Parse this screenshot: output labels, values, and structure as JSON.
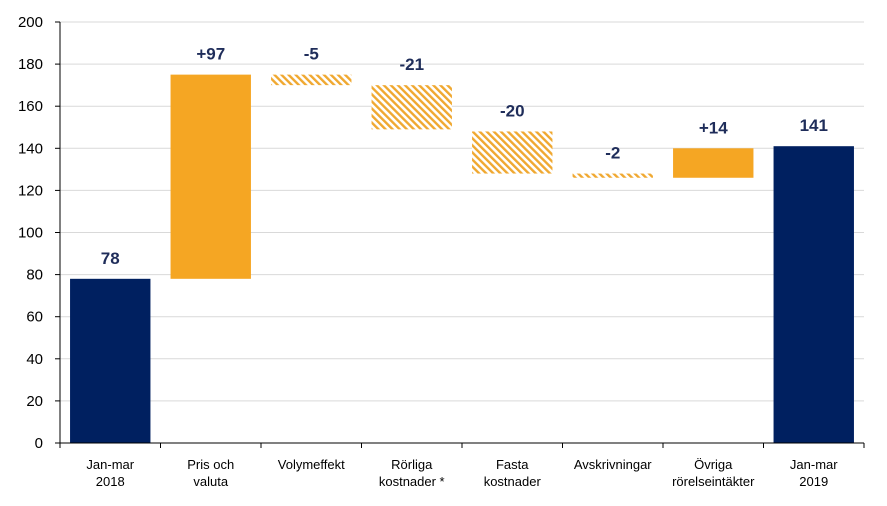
{
  "chart_data": {
    "type": "bar",
    "subtype": "waterfall",
    "title": "",
    "xlabel": "",
    "ylabel": "",
    "ylim": [
      0,
      200
    ],
    "y_ticks": [
      0,
      20,
      40,
      60,
      80,
      100,
      120,
      140,
      160,
      180,
      200
    ],
    "grid": true,
    "legend": "none",
    "categories": [
      [
        "Jan-mar",
        "2018"
      ],
      [
        "Pris och",
        "valuta"
      ],
      [
        "Volymeffekt"
      ],
      [
        "Rörliga",
        "kostnader *"
      ],
      [
        "Fasta",
        "kostnader"
      ],
      [
        "Avskrivningar"
      ],
      [
        "Övriga",
        "rörelseintäkter"
      ],
      [
        "Jan-mar",
        "2019"
      ]
    ],
    "bars": [
      {
        "kind": "total",
        "start": 0,
        "end": 78,
        "label": "78"
      },
      {
        "kind": "increase",
        "start": 78,
        "end": 175,
        "label": "+97"
      },
      {
        "kind": "decrease",
        "start": 175,
        "end": 170,
        "label": "-5"
      },
      {
        "kind": "decrease",
        "start": 170,
        "end": 149,
        "label": "-21"
      },
      {
        "kind": "decrease",
        "start": 148,
        "end": 128,
        "label": "-20"
      },
      {
        "kind": "decrease",
        "start": 128,
        "end": 126,
        "label": "-2"
      },
      {
        "kind": "increase",
        "start": 126,
        "end": 140,
        "label": "+14"
      },
      {
        "kind": "total",
        "start": 0,
        "end": 141,
        "label": "141"
      }
    ],
    "colors": {
      "total": "#002060",
      "increase": "#f5a623",
      "decrease_hatch": "#f0a830",
      "grid": "#d9d9d9",
      "axis": "#000000",
      "label": "#1f2d5a"
    }
  }
}
